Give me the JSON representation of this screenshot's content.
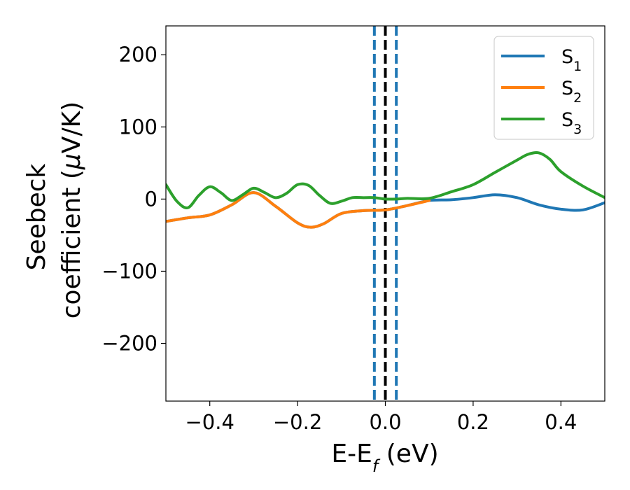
{
  "chart_data": {
    "type": "line",
    "title": "",
    "xlabel": {
      "main": "E-E",
      "sub": "f",
      "unit": " (eV)"
    },
    "ylabel": {
      "line1": "Seebeck",
      "line2_prefix": "coefficient  (",
      "line2_mu": "μ",
      "line2_suffix": "V/K)"
    },
    "xlim": [
      -0.5,
      0.5
    ],
    "ylim": [
      -280,
      240
    ],
    "xticks": [
      -0.4,
      -0.2,
      0.0,
      0.2,
      0.4
    ],
    "xtick_labels": [
      "−0.4",
      "−0.2",
      "0.0",
      "0.2",
      "0.4"
    ],
    "yticks": [
      200,
      100,
      0,
      -100,
      -200
    ],
    "ytick_labels": [
      "200",
      "100",
      "0",
      "−100",
      "−200"
    ],
    "legend_position": "top-right",
    "vlines": [
      {
        "x": -0.025,
        "style": "dashed",
        "color": "#1f77b4"
      },
      {
        "x": 0.0,
        "style": "dashed",
        "color": "#000000"
      },
      {
        "x": 0.025,
        "style": "dashed",
        "color": "#1f77b4"
      }
    ],
    "series": [
      {
        "name": "S",
        "sub": "1",
        "color": "#1f77b4",
        "x": [
          -0.5,
          -0.45,
          -0.4,
          -0.35,
          -0.3,
          -0.25,
          -0.2,
          -0.17,
          -0.14,
          -0.1,
          -0.05,
          0.0,
          0.05,
          0.1,
          0.15,
          0.2,
          0.25,
          0.3,
          0.35,
          0.4,
          0.45,
          0.5
        ],
        "y": [
          -31,
          -26,
          -22,
          -8,
          9,
          -10,
          -33,
          -39,
          -34,
          -20,
          -16,
          -15,
          -9,
          -2,
          -1,
          2,
          6,
          2,
          -8,
          -14,
          -15,
          -5
        ]
      },
      {
        "name": "S",
        "sub": "2",
        "color": "#ff7f0e",
        "x": [
          -0.5,
          -0.45,
          -0.4,
          -0.35,
          -0.3,
          -0.25,
          -0.2,
          -0.17,
          -0.14,
          -0.1,
          -0.05,
          0.0,
          0.05,
          0.1
        ],
        "y": [
          -31,
          -26,
          -22,
          -8,
          9,
          -10,
          -33,
          -39,
          -34,
          -20,
          -16,
          -15,
          -9,
          -2
        ]
      },
      {
        "name": "S",
        "sub": "3",
        "color": "#2ca02c",
        "x": [
          -0.5,
          -0.475,
          -0.45,
          -0.425,
          -0.4,
          -0.375,
          -0.35,
          -0.325,
          -0.3,
          -0.275,
          -0.25,
          -0.225,
          -0.2,
          -0.175,
          -0.15,
          -0.125,
          -0.1,
          -0.075,
          -0.05,
          -0.025,
          0.0,
          0.025,
          0.05,
          0.1,
          0.15,
          0.2,
          0.25,
          0.3,
          0.325,
          0.35,
          0.375,
          0.4,
          0.45,
          0.5
        ],
        "y": [
          20,
          -3,
          -12,
          5,
          17,
          9,
          -2,
          6,
          15,
          9,
          2,
          8,
          20,
          19,
          5,
          -6,
          -3,
          2,
          2,
          2,
          0,
          0,
          1,
          1,
          10,
          20,
          37,
          54,
          62,
          64,
          55,
          38,
          18,
          2
        ]
      }
    ]
  }
}
